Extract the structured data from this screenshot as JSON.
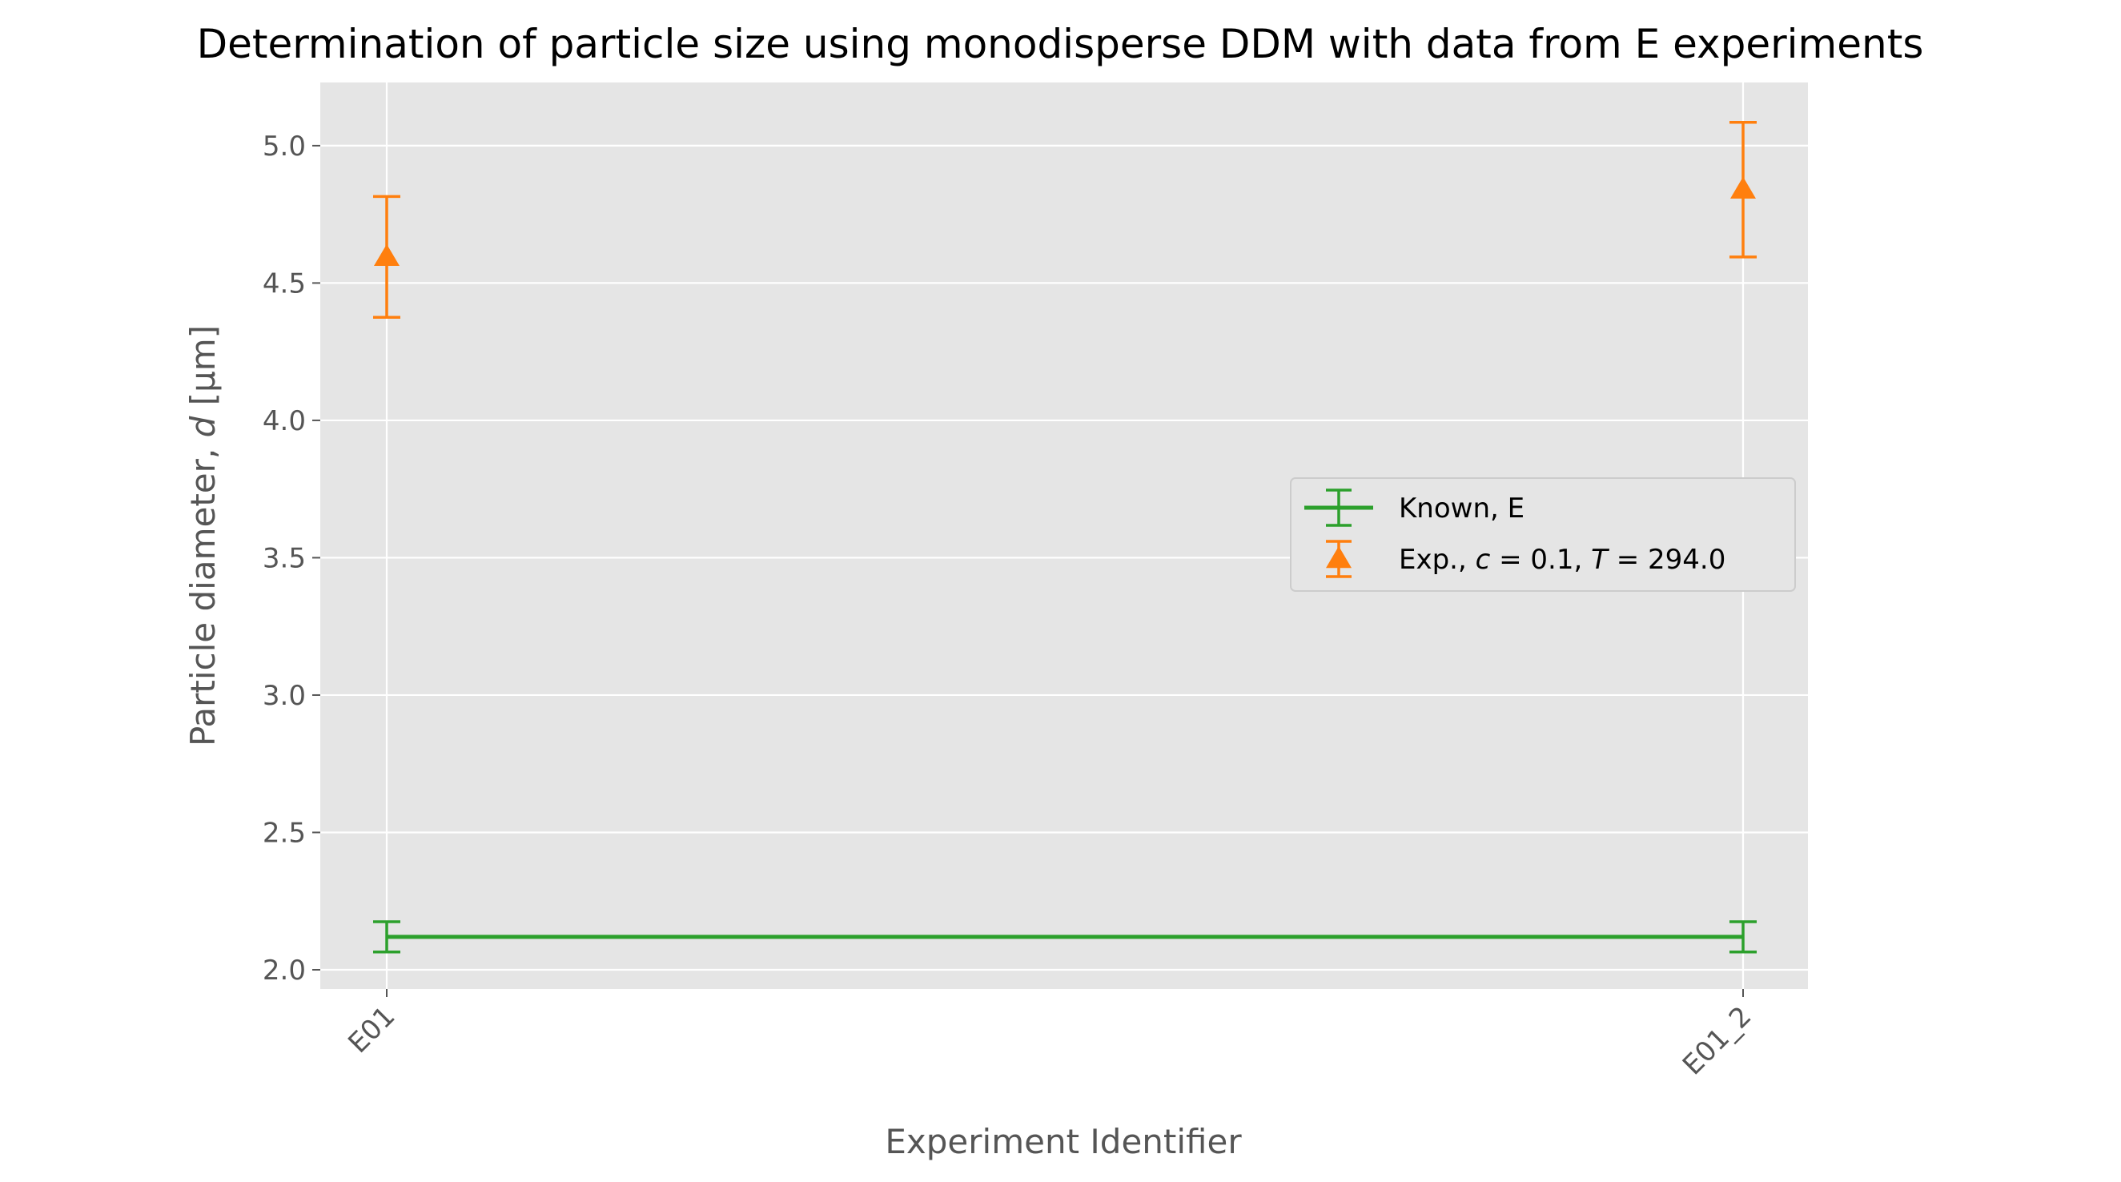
{
  "chart_data": {
    "type": "line",
    "title": "Determination of particle size using monodisperse DDM with data from E experiments",
    "xlabel": "Experiment Identifier",
    "ylabel_parts": {
      "prefix": "Particle diameter, ",
      "var": "d",
      "suffix": " [μm]"
    },
    "categories": [
      "E01",
      "E01_2"
    ],
    "ylim": [
      1.93,
      5.23
    ],
    "yticks": [
      2.0,
      2.5,
      3.0,
      3.5,
      4.0,
      4.5,
      5.0
    ],
    "ytick_labels": [
      "2.0",
      "2.5",
      "3.0",
      "3.5",
      "4.0",
      "4.5",
      "5.0"
    ],
    "grid": true,
    "legend_position": "center-right",
    "series": [
      {
        "name": "Known, E",
        "legend_parts": [
          {
            "t": "Known, E",
            "i": false
          }
        ],
        "style": "line",
        "color": "#2ca02c",
        "values": [
          2.12,
          2.12
        ],
        "yerr": [
          0.055,
          0.055
        ]
      },
      {
        "name": "Exp., c = 0.1, T = 294.0",
        "legend_parts": [
          {
            "t": "Exp., ",
            "i": false
          },
          {
            "t": "c",
            "i": true
          },
          {
            "t": " = 0.1, ",
            "i": false
          },
          {
            "t": "T",
            "i": true
          },
          {
            "t": " = 294.0",
            "i": false
          }
        ],
        "style": "marker-triangle",
        "color": "#ff7f0e",
        "values": [
          4.595,
          4.84
        ],
        "yerr": [
          0.22,
          0.245
        ]
      }
    ],
    "background_color": "#e5e5e5",
    "grid_color": "#ffffff"
  }
}
